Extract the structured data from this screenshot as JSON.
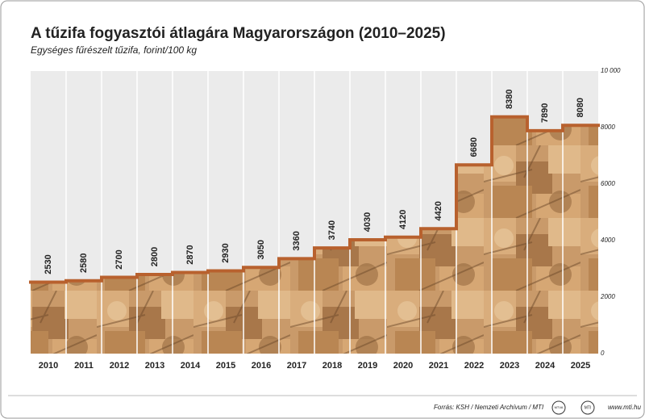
{
  "chart_data": {
    "type": "bar",
    "title": "A tűzifa fogyasztói átlagára Magyarországon (2010–2025)",
    "subtitle": "Egységes fűrészelt tűzifa, forint/100 kg",
    "categories": [
      "2010",
      "2011",
      "2012",
      "2013",
      "2014",
      "2015",
      "2016",
      "2017",
      "2018",
      "2019",
      "2020",
      "2021",
      "2022",
      "2023",
      "2024",
      "2025"
    ],
    "values": [
      2530,
      2580,
      2700,
      2800,
      2870,
      2930,
      3050,
      3360,
      3740,
      4030,
      4120,
      4420,
      6680,
      8380,
      7890,
      8080
    ],
    "color": "#b8612e",
    "ylim": [
      0,
      10000
    ],
    "yticks": [
      0,
      2000,
      4000,
      6000,
      8000,
      {
        "value": 10000,
        "label": "10 000"
      }
    ],
    "source": "Forrás: KSH / Nemzeti Archívum / MTI",
    "logos": [
      "MTVA",
      "MTI"
    ],
    "website": "www.mti.hu"
  }
}
